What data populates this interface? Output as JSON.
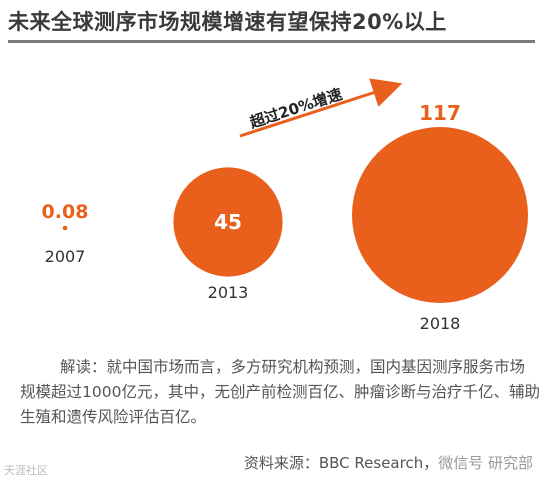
{
  "title": "未来全球测序市场规模增速有望保持20%以上",
  "arrow_label": "超过20%增速",
  "chart_data": {
    "type": "bubble",
    "categories": [
      "2007",
      "2013",
      "2018"
    ],
    "values": [
      0.08,
      45,
      117
    ],
    "value_labels": [
      "0.08",
      "45",
      "117"
    ],
    "color": "#e8601c"
  },
  "note": {
    "lead": "解读：",
    "text": "就中国市场而言，多方研究机构预测，国内基因测序服务市场规模超过1000亿元，其中，无创产前检测百亿、肿瘤诊断与治疗千亿、辅助生殖和遗传风险评估百亿。"
  },
  "source": "资料来源：BBC Research，",
  "watermark_right": "微信号 研究部",
  "watermark_left": "天涯社区"
}
